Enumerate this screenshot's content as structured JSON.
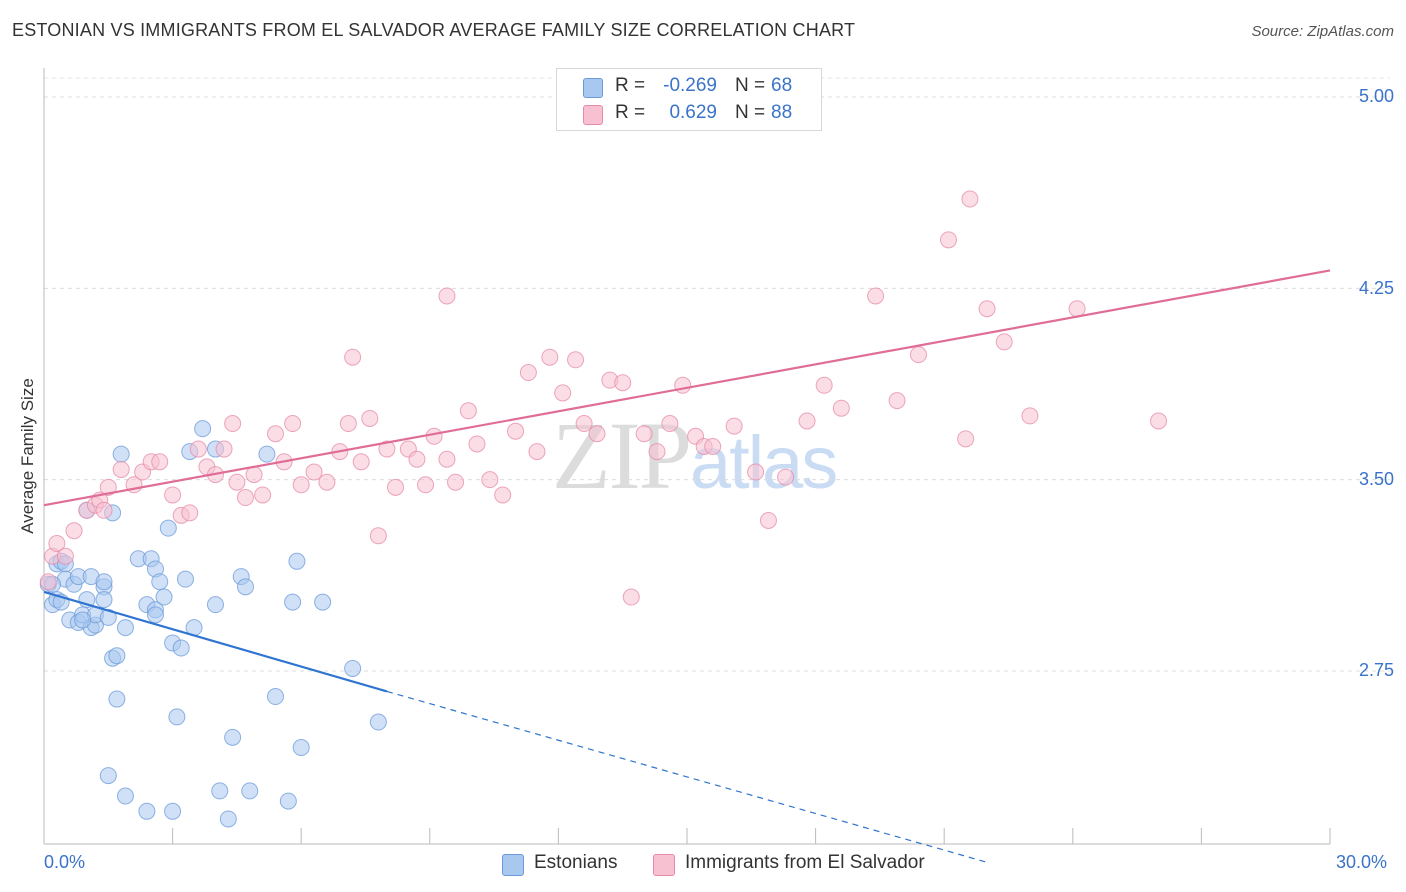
{
  "title": "ESTONIAN VS IMMIGRANTS FROM EL SALVADOR AVERAGE FAMILY SIZE CORRELATION CHART",
  "source": "Source: ZipAtlas.com",
  "watermark": {
    "zip": "ZIP",
    "atlas": "atlas"
  },
  "legend_top": {
    "rows": [
      {
        "r_label": "R =",
        "r_value": "-0.269",
        "n_label": "N =",
        "n_value": "68",
        "color": "#a9c8f0",
        "border": "#6b9ad8"
      },
      {
        "r_label": "R =",
        "r_value": "0.629",
        "n_label": "N =",
        "n_value": "88",
        "color": "#f8c1d1",
        "border": "#e68aa8"
      }
    ]
  },
  "legend_bottom": {
    "items": [
      {
        "label": "Estonians",
        "color": "#a9c8f0",
        "border": "#6b9ad8"
      },
      {
        "label": "Immigrants from El Salvador",
        "color": "#f8c1d1",
        "border": "#e68aa8"
      }
    ]
  },
  "axes": {
    "ylabel": "Average Family Size",
    "x_min_label": "0.0%",
    "x_max_label": "30.0%",
    "y_ticks": [
      "5.00",
      "4.25",
      "3.50",
      "2.75"
    ]
  },
  "chart_data": {
    "type": "scatter",
    "title": "ESTONIAN VS IMMIGRANTS FROM EL SALVADOR AVERAGE FAMILY SIZE CORRELATION CHART",
    "xlabel": "",
    "ylabel": "Average Family Size",
    "xlim": [
      0,
      30
    ],
    "ylim": [
      2.0,
      5.1
    ],
    "y_ticks": [
      2.75,
      3.5,
      4.25,
      5.0
    ],
    "grid": "horizontal dashed",
    "legend": "top-center",
    "colors": {
      "estonians": "#6b9ad8",
      "estonians_fill": "#a9c8f0",
      "estonians_line": "#2f74d0",
      "salvador": "#e68aa8",
      "salvador_fill": "#f8c1d1",
      "salvador_line": "#e06d97"
    },
    "series": [
      {
        "name": "Estonians",
        "r": -0.269,
        "n": 68,
        "trend": {
          "x": [
            0,
            8
          ],
          "y": [
            3.06,
            2.67
          ],
          "dashed_to": [
            22,
            2.0
          ]
        },
        "points": [
          [
            0.1,
            3.09
          ],
          [
            0.2,
            3.01
          ],
          [
            0.3,
            3.03
          ],
          [
            0.3,
            3.17
          ],
          [
            0.4,
            3.18
          ],
          [
            0.4,
            3.02
          ],
          [
            0.5,
            3.17
          ],
          [
            0.5,
            3.11
          ],
          [
            0.6,
            2.95
          ],
          [
            0.7,
            3.09
          ],
          [
            0.8,
            3.12
          ],
          [
            0.8,
            2.94
          ],
          [
            0.9,
            2.97
          ],
          [
            1.0,
            3.38
          ],
          [
            1.0,
            3.03
          ],
          [
            1.1,
            2.92
          ],
          [
            1.1,
            3.12
          ],
          [
            1.2,
            2.93
          ],
          [
            1.2,
            2.97
          ],
          [
            1.4,
            3.08
          ],
          [
            1.4,
            3.1
          ],
          [
            1.4,
            3.03
          ],
          [
            1.6,
            3.37
          ],
          [
            1.6,
            2.8
          ],
          [
            1.7,
            2.81
          ],
          [
            1.7,
            2.64
          ],
          [
            1.8,
            3.6
          ],
          [
            1.9,
            2.92
          ],
          [
            1.5,
            2.34
          ],
          [
            1.5,
            2.96
          ],
          [
            1.9,
            2.26
          ],
          [
            2.2,
            3.19
          ],
          [
            2.4,
            3.01
          ],
          [
            2.5,
            3.19
          ],
          [
            2.6,
            3.15
          ],
          [
            2.6,
            2.99
          ],
          [
            2.7,
            3.1
          ],
          [
            2.8,
            3.04
          ],
          [
            2.9,
            3.31
          ],
          [
            3.0,
            2.86
          ],
          [
            3.1,
            2.57
          ],
          [
            2.4,
            2.2
          ],
          [
            3.2,
            2.84
          ],
          [
            3.3,
            3.11
          ],
          [
            3.4,
            3.61
          ],
          [
            3.5,
            2.92
          ],
          [
            3.7,
            3.7
          ],
          [
            3.0,
            2.2
          ],
          [
            4.0,
            3.01
          ],
          [
            4.1,
            2.28
          ],
          [
            4.0,
            3.62
          ],
          [
            4.4,
            2.49
          ],
          [
            4.6,
            3.12
          ],
          [
            4.8,
            2.28
          ],
          [
            4.3,
            2.17
          ],
          [
            4.7,
            3.08
          ],
          [
            5.2,
            3.6
          ],
          [
            5.4,
            2.65
          ],
          [
            5.7,
            2.24
          ],
          [
            5.8,
            3.02
          ],
          [
            5.9,
            3.18
          ],
          [
            6.0,
            2.45
          ],
          [
            6.5,
            3.02
          ],
          [
            7.2,
            2.76
          ],
          [
            7.8,
            2.55
          ],
          [
            0.2,
            3.09
          ],
          [
            0.9,
            2.95
          ],
          [
            2.6,
            2.97
          ]
        ]
      },
      {
        "name": "Immigrants from El Salvador",
        "r": 0.629,
        "n": 88,
        "trend": {
          "x": [
            0,
            30
          ],
          "y": [
            3.4,
            4.32
          ]
        },
        "points": [
          [
            0.1,
            3.1
          ],
          [
            0.2,
            3.2
          ],
          [
            0.3,
            3.25
          ],
          [
            0.5,
            3.2
          ],
          [
            0.7,
            3.3
          ],
          [
            1.0,
            3.38
          ],
          [
            1.2,
            3.4
          ],
          [
            1.3,
            3.42
          ],
          [
            1.4,
            3.38
          ],
          [
            1.5,
            3.47
          ],
          [
            1.8,
            3.54
          ],
          [
            2.1,
            3.48
          ],
          [
            2.3,
            3.53
          ],
          [
            2.5,
            3.57
          ],
          [
            2.7,
            3.57
          ],
          [
            3.0,
            3.44
          ],
          [
            3.2,
            3.36
          ],
          [
            3.4,
            3.37
          ],
          [
            3.6,
            3.62
          ],
          [
            3.8,
            3.55
          ],
          [
            4.0,
            3.52
          ],
          [
            4.2,
            3.62
          ],
          [
            4.4,
            3.72
          ],
          [
            4.5,
            3.49
          ],
          [
            4.7,
            3.43
          ],
          [
            4.9,
            3.52
          ],
          [
            5.1,
            3.44
          ],
          [
            5.4,
            3.68
          ],
          [
            5.6,
            3.57
          ],
          [
            5.8,
            3.72
          ],
          [
            6.0,
            3.48
          ],
          [
            6.3,
            3.53
          ],
          [
            6.6,
            3.49
          ],
          [
            6.9,
            3.61
          ],
          [
            7.1,
            3.72
          ],
          [
            7.4,
            3.57
          ],
          [
            7.6,
            3.74
          ],
          [
            7.8,
            3.28
          ],
          [
            8.0,
            3.62
          ],
          [
            8.2,
            3.47
          ],
          [
            8.5,
            3.62
          ],
          [
            8.7,
            3.58
          ],
          [
            8.9,
            3.48
          ],
          [
            9.1,
            3.67
          ],
          [
            9.4,
            3.58
          ],
          [
            9.6,
            3.49
          ],
          [
            9.9,
            3.77
          ],
          [
            10.1,
            3.64
          ],
          [
            10.4,
            3.5
          ],
          [
            10.7,
            3.44
          ],
          [
            11.0,
            3.69
          ],
          [
            11.3,
            3.92
          ],
          [
            11.5,
            3.61
          ],
          [
            11.8,
            3.98
          ],
          [
            12.1,
            3.84
          ],
          [
            12.4,
            3.97
          ],
          [
            12.6,
            3.72
          ],
          [
            12.9,
            3.68
          ],
          [
            13.2,
            3.89
          ],
          [
            13.5,
            3.88
          ],
          [
            13.7,
            3.04
          ],
          [
            14.0,
            3.68
          ],
          [
            14.3,
            3.61
          ],
          [
            14.6,
            3.72
          ],
          [
            14.9,
            3.87
          ],
          [
            15.2,
            3.67
          ],
          [
            15.4,
            3.63
          ],
          [
            15.6,
            3.63
          ],
          [
            16.1,
            3.71
          ],
          [
            16.6,
            3.53
          ],
          [
            16.9,
            3.34
          ],
          [
            17.3,
            3.51
          ],
          [
            17.8,
            3.73
          ],
          [
            18.2,
            3.87
          ],
          [
            18.6,
            3.78
          ],
          [
            19.4,
            4.22
          ],
          [
            19.9,
            3.81
          ],
          [
            20.4,
            3.99
          ],
          [
            21.1,
            4.44
          ],
          [
            21.5,
            3.66
          ],
          [
            22.0,
            4.17
          ],
          [
            22.4,
            4.04
          ],
          [
            23.0,
            3.75
          ],
          [
            26.0,
            3.73
          ],
          [
            24.1,
            4.17
          ],
          [
            9.4,
            4.22
          ],
          [
            7.2,
            3.98
          ],
          [
            21.6,
            4.6
          ]
        ]
      }
    ]
  }
}
